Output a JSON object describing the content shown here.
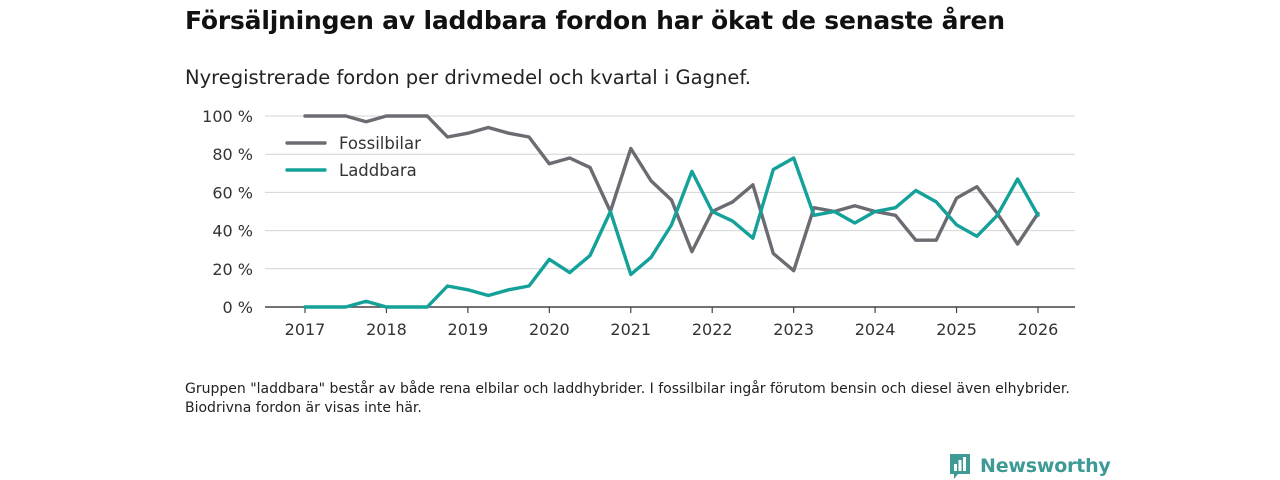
{
  "header": {
    "title": "Försäljningen av laddbara fordon har ökat de senaste åren",
    "subtitle": "Nyregistrerade fordon per drivmedel och kvartal i Gagnef."
  },
  "footnote": "Gruppen \"laddbara\" består av både rena elbilar och laddhybrider. I fossilbilar ingår förutom bensin och diesel även elhybrider. Biodrivna fordon är visas inte här.",
  "brand": {
    "name": "Newsworthy",
    "color": "#3d9a95",
    "icon": "bar-chart-logo-icon"
  },
  "chart_data": {
    "type": "line",
    "title": "Försäljningen av laddbara fordon har ökat de senaste åren",
    "subtitle": "Nyregistrerade fordon per drivmedel och kvartal i Gagnef.",
    "xlabel": "",
    "ylabel": "",
    "xlim": [
      2017,
      2026
    ],
    "ylim": [
      0,
      100
    ],
    "x_ticks": [
      "2017",
      "2018",
      "2019",
      "2020",
      "2021",
      "2022",
      "2023",
      "2024",
      "2025",
      "2026"
    ],
    "y_ticks": [
      "0 %",
      "20 %",
      "40 %",
      "60 %",
      "80 %",
      "100 %"
    ],
    "y_tick_values": [
      0,
      20,
      40,
      60,
      80,
      100
    ],
    "grid": true,
    "legend_position": "top-left",
    "x": [
      2017.0,
      2017.25,
      2017.5,
      2017.75,
      2018.0,
      2018.25,
      2018.5,
      2018.75,
      2019.0,
      2019.25,
      2019.5,
      2019.75,
      2020.0,
      2020.25,
      2020.5,
      2020.75,
      2021.0,
      2021.25,
      2021.5,
      2021.75,
      2022.0,
      2022.25,
      2022.5,
      2022.75,
      2023.0,
      2023.25,
      2023.5,
      2023.75,
      2024.0,
      2024.25,
      2024.5,
      2024.75,
      2025.0,
      2025.25,
      2025.5,
      2025.75,
      2026.0
    ],
    "series": [
      {
        "name": "Fossilbilar",
        "color": "#6b6b72",
        "values": [
          100,
          100,
          100,
          97,
          100,
          100,
          100,
          89,
          91,
          94,
          91,
          89,
          75,
          78,
          73,
          50,
          83,
          66,
          56,
          29,
          50,
          55,
          64,
          28,
          19,
          52,
          50,
          53,
          50,
          48,
          35,
          35,
          57,
          63,
          49,
          33,
          49
        ]
      },
      {
        "name": "Laddbara",
        "color": "#14a19a",
        "values": [
          0,
          0,
          0,
          3,
          0,
          0,
          0,
          11,
          9,
          6,
          9,
          11,
          25,
          18,
          27,
          50,
          17,
          26,
          43,
          71,
          50,
          45,
          36,
          72,
          78,
          48,
          50,
          44,
          50,
          52,
          61,
          55,
          43,
          37,
          48,
          67,
          48
        ]
      }
    ]
  }
}
